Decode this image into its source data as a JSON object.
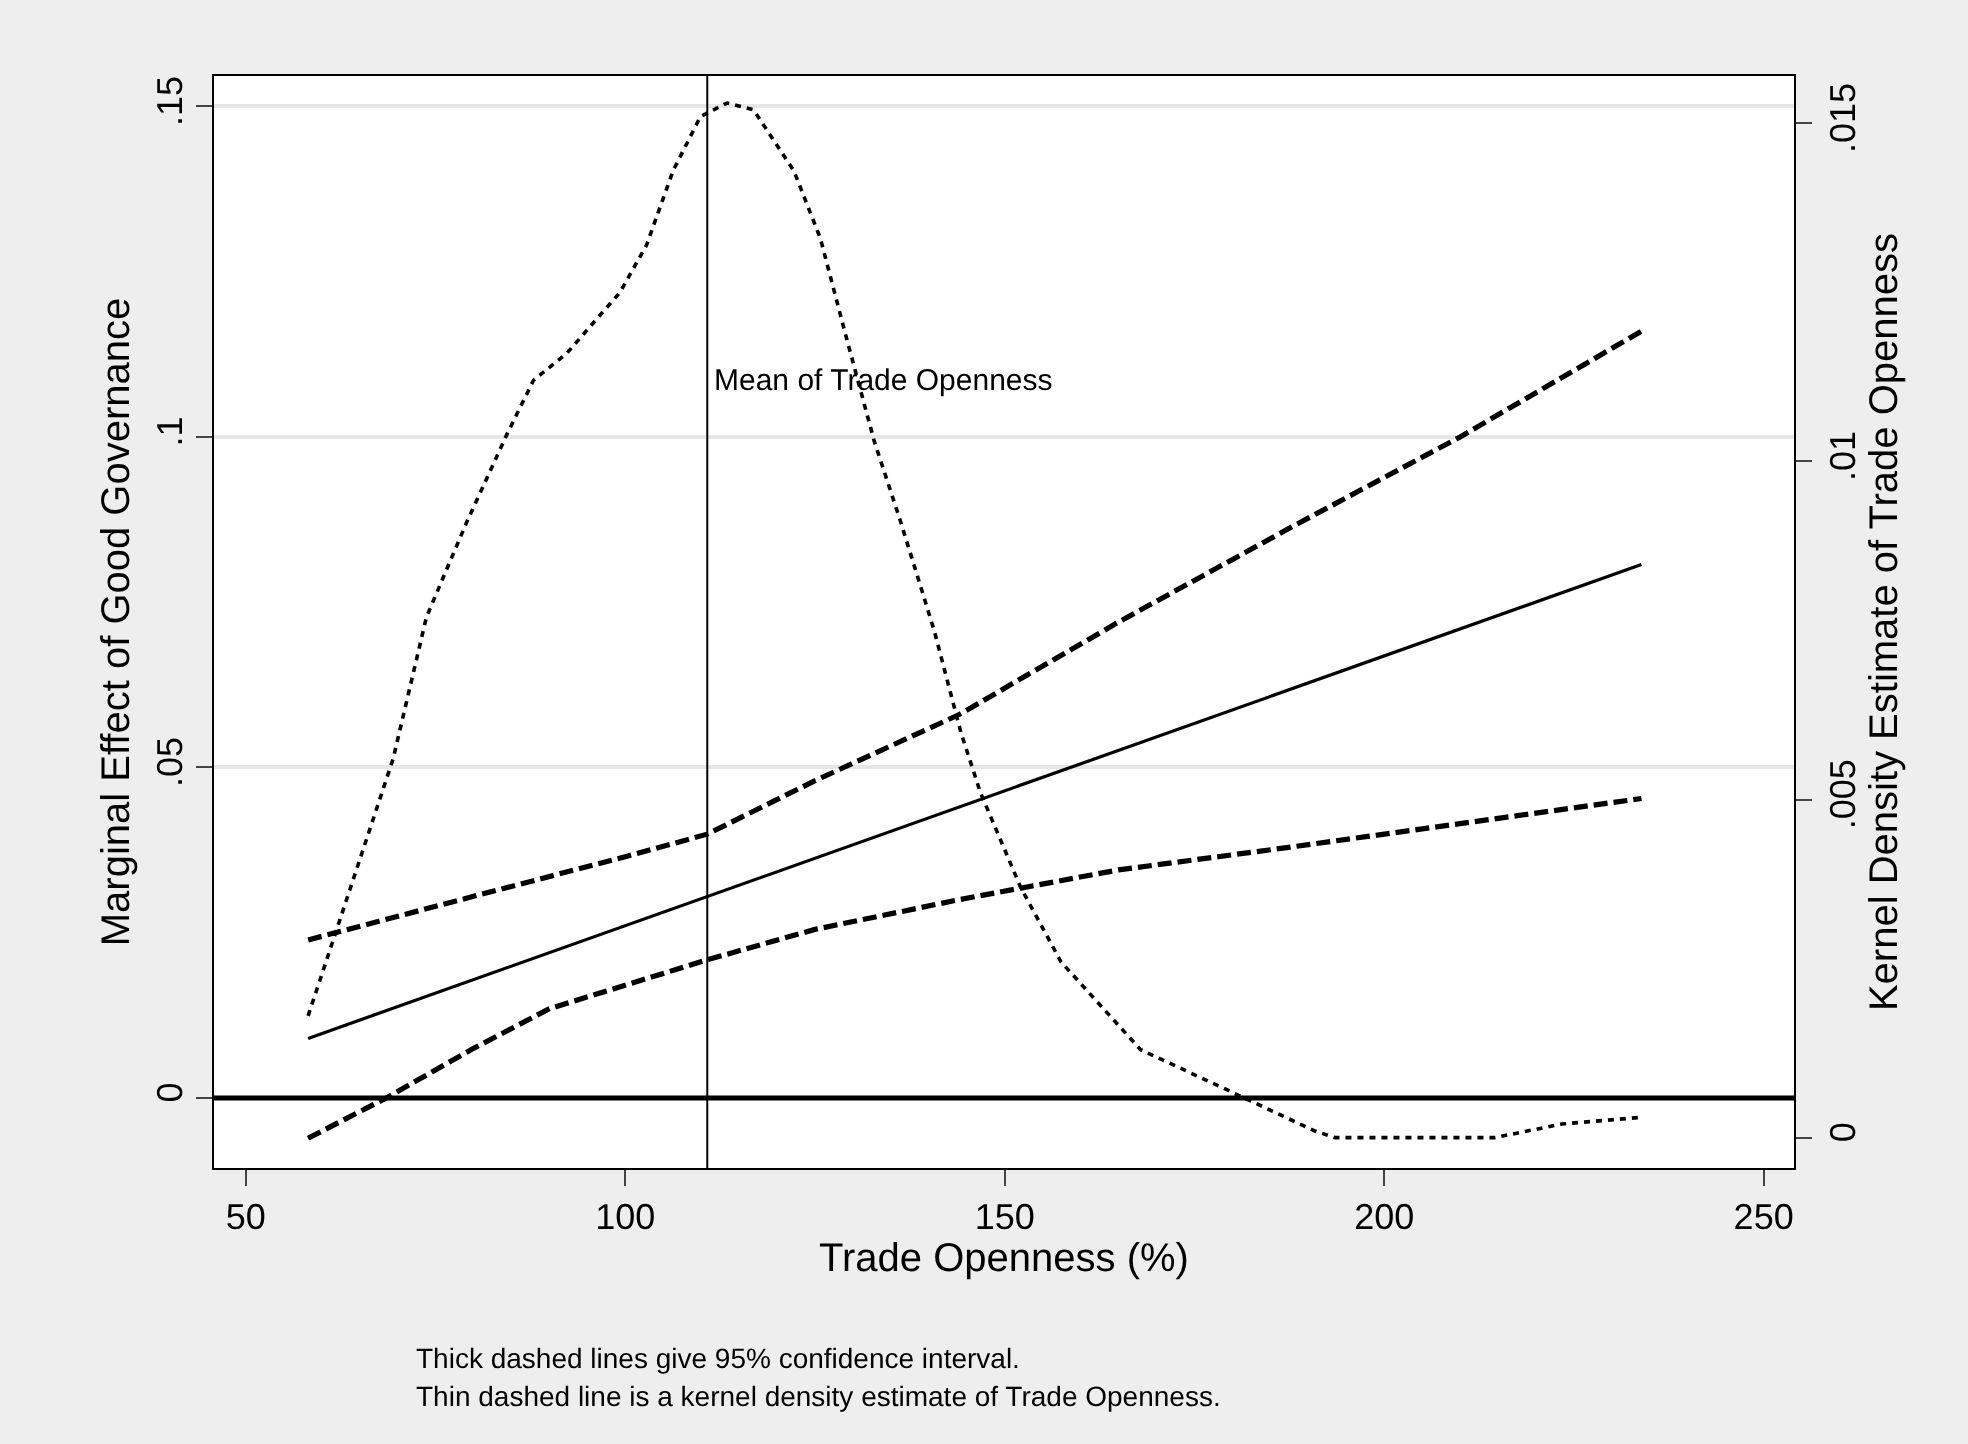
{
  "chart_data": {
    "type": "line",
    "xlabel": "Trade Openness (%)",
    "ylabel": "Marginal Effect of Good Governance",
    "y2label": "Kernel Density Estimate of Trade Openness",
    "series": [
      {
        "color": "#000000",
        "line_style": "solid",
        "x": [
          58.2,
          233.9
        ],
        "values": [
          0.009,
          0.0807
        ]
      },
      {
        "color": "#000000",
        "line_style": "dashed",
        "x": [
          58.2,
          80,
          100,
          110.8,
          125,
          144,
          165,
          188,
          210,
          233.9
        ],
        "values": [
          0.0239,
          0.0305,
          0.0365,
          0.0399,
          0.048,
          0.058,
          0.072,
          0.0865,
          0.1,
          0.116
        ]
      },
      {
        "color": "#000000",
        "line_style": "dashed",
        "x": [
          58.2,
          68.5,
          80,
          90,
          110.8,
          125,
          144,
          165,
          188,
          210,
          233.9
        ],
        "values": [
          -0.0061,
          0,
          0.0075,
          0.0135,
          0.0209,
          0.0255,
          0.03,
          0.0345,
          0.038,
          0.0415,
          0.0453
        ]
      },
      {
        "color": "#000000",
        "line_style": "dotted",
        "axis": "y2",
        "x": [
          58.2,
          69.4,
          73.8,
          79.1,
          84.4,
          87.9,
          92.3,
          99.3,
          102.8,
          106.3,
          109.9,
          113.4,
          116.9,
          122.2,
          125.7,
          129.2,
          132.8,
          136.3,
          140.7,
          144.2,
          146.8,
          152.1,
          157.4,
          167.9,
          179.4,
          190.8,
          193.5,
          214.6,
          223.4,
          233.9
        ],
        "values": [
          0.0018,
          0.0056,
          0.0077,
          0.0091,
          0.0104,
          0.0112,
          0.0116,
          0.0125,
          0.0132,
          0.0143,
          0.0151,
          0.0153,
          0.0152,
          0.0143,
          0.0133,
          0.0118,
          0.0103,
          0.0091,
          0.0075,
          0.006,
          0.0051,
          0.0037,
          0.0026,
          0.0013,
          0.0007,
          0.0001,
          0,
          0,
          0.0002,
          0.0003
        ]
      }
    ],
    "xlim": [
      45.8,
      254
    ],
    "xticks": [
      50,
      100,
      150,
      200,
      250
    ],
    "ylim": [
      -0.0106,
      0.1546
    ],
    "yticks": [
      {
        "value": 0,
        "label": "0"
      },
      {
        "value": 0.05,
        "label": ".05"
      },
      {
        "value": 0.1,
        "label": ".1"
      },
      {
        "value": 0.15,
        "label": ".15"
      }
    ],
    "y2lim": [
      -0.00045,
      0.0157
    ],
    "y2ticks": [
      {
        "value": 0,
        "label": "0"
      },
      {
        "value": 0.005,
        "label": ".005"
      },
      {
        "value": 0.01,
        "label": ".01"
      },
      {
        "value": 0.015,
        "label": ".015"
      }
    ],
    "ref_lines": [
      {
        "axis": "x",
        "value": 110.8,
        "label": "Mean of Trade Openness",
        "color": "#000000"
      },
      {
        "axis": "y",
        "value": 0,
        "color": "#000000"
      }
    ],
    "grid": "y",
    "annotations": [
      "Thick dashed lines give 95% confidence interval.",
      "Thin dashed line is a kernel density estimate of Trade Openness."
    ]
  }
}
